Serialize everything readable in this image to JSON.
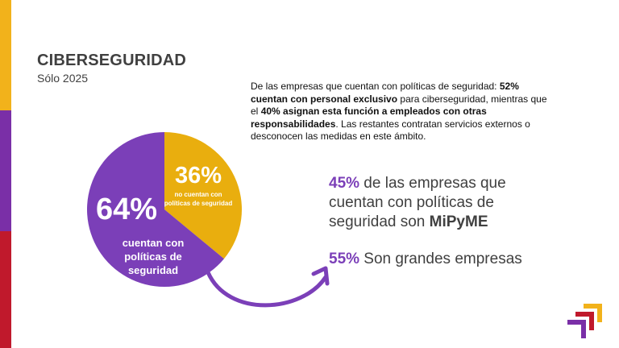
{
  "colors": {
    "purple": "#7B3FB8",
    "yellow": "#E9AE0E",
    "bar_yellow": "#F2B21B",
    "bar_purple": "#7A2FA7",
    "bar_red": "#C0192C",
    "text_gray": "#404040"
  },
  "header": {
    "title": "CIBERSEGURIDAD",
    "subtitle": "Sólo 2025"
  },
  "description": {
    "part1": "De las empresas que cuentan con políticas de seguridad: ",
    "bold1": "52% cuentan con personal exclusivo",
    "part2": " para ciberseguridad, mientras que el ",
    "bold2": "40% asignan esta función a empleados con otras responsabilidades",
    "part3": ". Las restantes contratan servicios externos o desconocen las medidas en este ámbito."
  },
  "chart_data": {
    "type": "pie",
    "slices": [
      {
        "label": "no cuentan con políticas de seguridad",
        "value": 36,
        "display": "36%"
      },
      {
        "label": "cuentan con políticas de seguridad",
        "value": 64,
        "display": "64%"
      }
    ]
  },
  "chart_labels": {
    "pct_36": "36%",
    "label_36_line1": "no cuentan con",
    "label_36_line2": "políticas de seguridad",
    "pct_64": "64%",
    "label_64_line1": "cuentan con",
    "label_64_line2": "políticas de",
    "label_64_line3": "seguridad"
  },
  "stats": {
    "s1_pct": "45%",
    "s1_text": " de las empresas que cuentan con políticas de seguridad son ",
    "s1_bold": "MiPyME",
    "s2_pct": "55%",
    "s2_text": " Son grandes empresas"
  },
  "logo": {
    "icon": "brand-chevron-logo"
  }
}
